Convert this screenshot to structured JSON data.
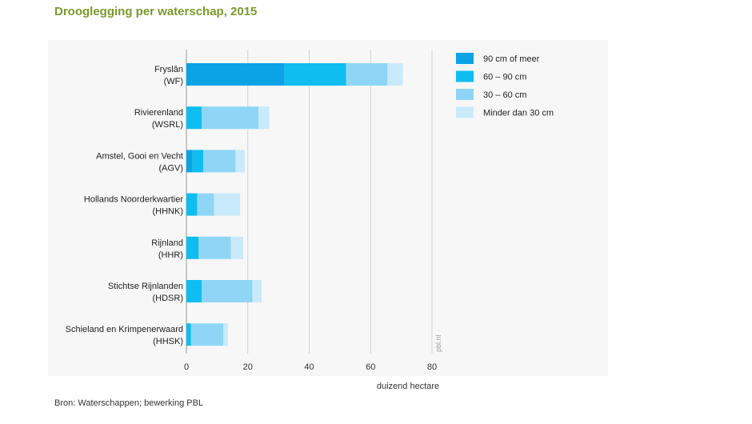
{
  "chart_data": {
    "type": "bar",
    "orientation": "horizontal",
    "stacked": true,
    "title": "Drooglegging per waterschap, 2015",
    "xlabel": "duizend hectare",
    "ylabel": "",
    "xlim": [
      0,
      80
    ],
    "xticks": [
      0,
      20,
      40,
      60,
      80
    ],
    "grid": true,
    "legend_position": "right",
    "categories": [
      [
        "Fryslân",
        "(WF)"
      ],
      [
        "Rivierenland",
        "(WSRL)"
      ],
      [
        "Amstel, Gooi en Vecht",
        "(AGV)"
      ],
      [
        "Hollands Noorderkwartier",
        "(HHNK)"
      ],
      [
        "Rijnland",
        "(HHR)"
      ],
      [
        "Stichtse Rijnlanden",
        "(HDSR)"
      ],
      [
        "Schieland en Krimpenerwaard",
        "(HHSK)"
      ]
    ],
    "series": [
      {
        "name": "90 cm of meer",
        "color": "#0aa3e6",
        "values": [
          32,
          0,
          2,
          0,
          0,
          0,
          0
        ]
      },
      {
        "name": "60 – 90 cm",
        "color": "#0fbdf0",
        "values": [
          20,
          5,
          3.5,
          3.5,
          4,
          5,
          1.5
        ]
      },
      {
        "name": "30 – 60 cm",
        "color": "#8fd6f6",
        "values": [
          13.5,
          18.5,
          10.5,
          5.5,
          10.5,
          16.5,
          10.5
        ]
      },
      {
        "name": "Minder dan 30 cm",
        "color": "#c9eafb",
        "values": [
          5,
          3.5,
          3,
          8.5,
          4,
          3,
          1.5
        ]
      }
    ],
    "watermark": "pbl.nl"
  },
  "source": "Bron: Waterschappen; bewerking PBL"
}
